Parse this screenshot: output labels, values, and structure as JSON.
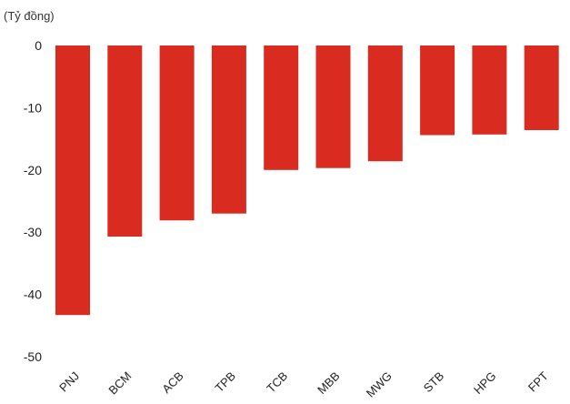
{
  "chart_data": {
    "type": "bar",
    "title": "",
    "unit_label": "(Tỷ đồng)",
    "xlabel": "",
    "ylabel": "",
    "categories": [
      "PNJ",
      "BCM",
      "ACB",
      "TPB",
      "TCB",
      "MBB",
      "MWG",
      "STB",
      "HPG",
      "FPT"
    ],
    "values": [
      -43.3,
      -30.7,
      -28.1,
      -27.0,
      -20.0,
      -19.7,
      -18.6,
      -14.4,
      -14.3,
      -13.6
    ],
    "ylim": [
      -50,
      0
    ],
    "yticks": [
      0,
      -10,
      -20,
      -30,
      -40,
      -50
    ],
    "grid": false,
    "legend": "none",
    "bar_color": "#d92b1f"
  }
}
